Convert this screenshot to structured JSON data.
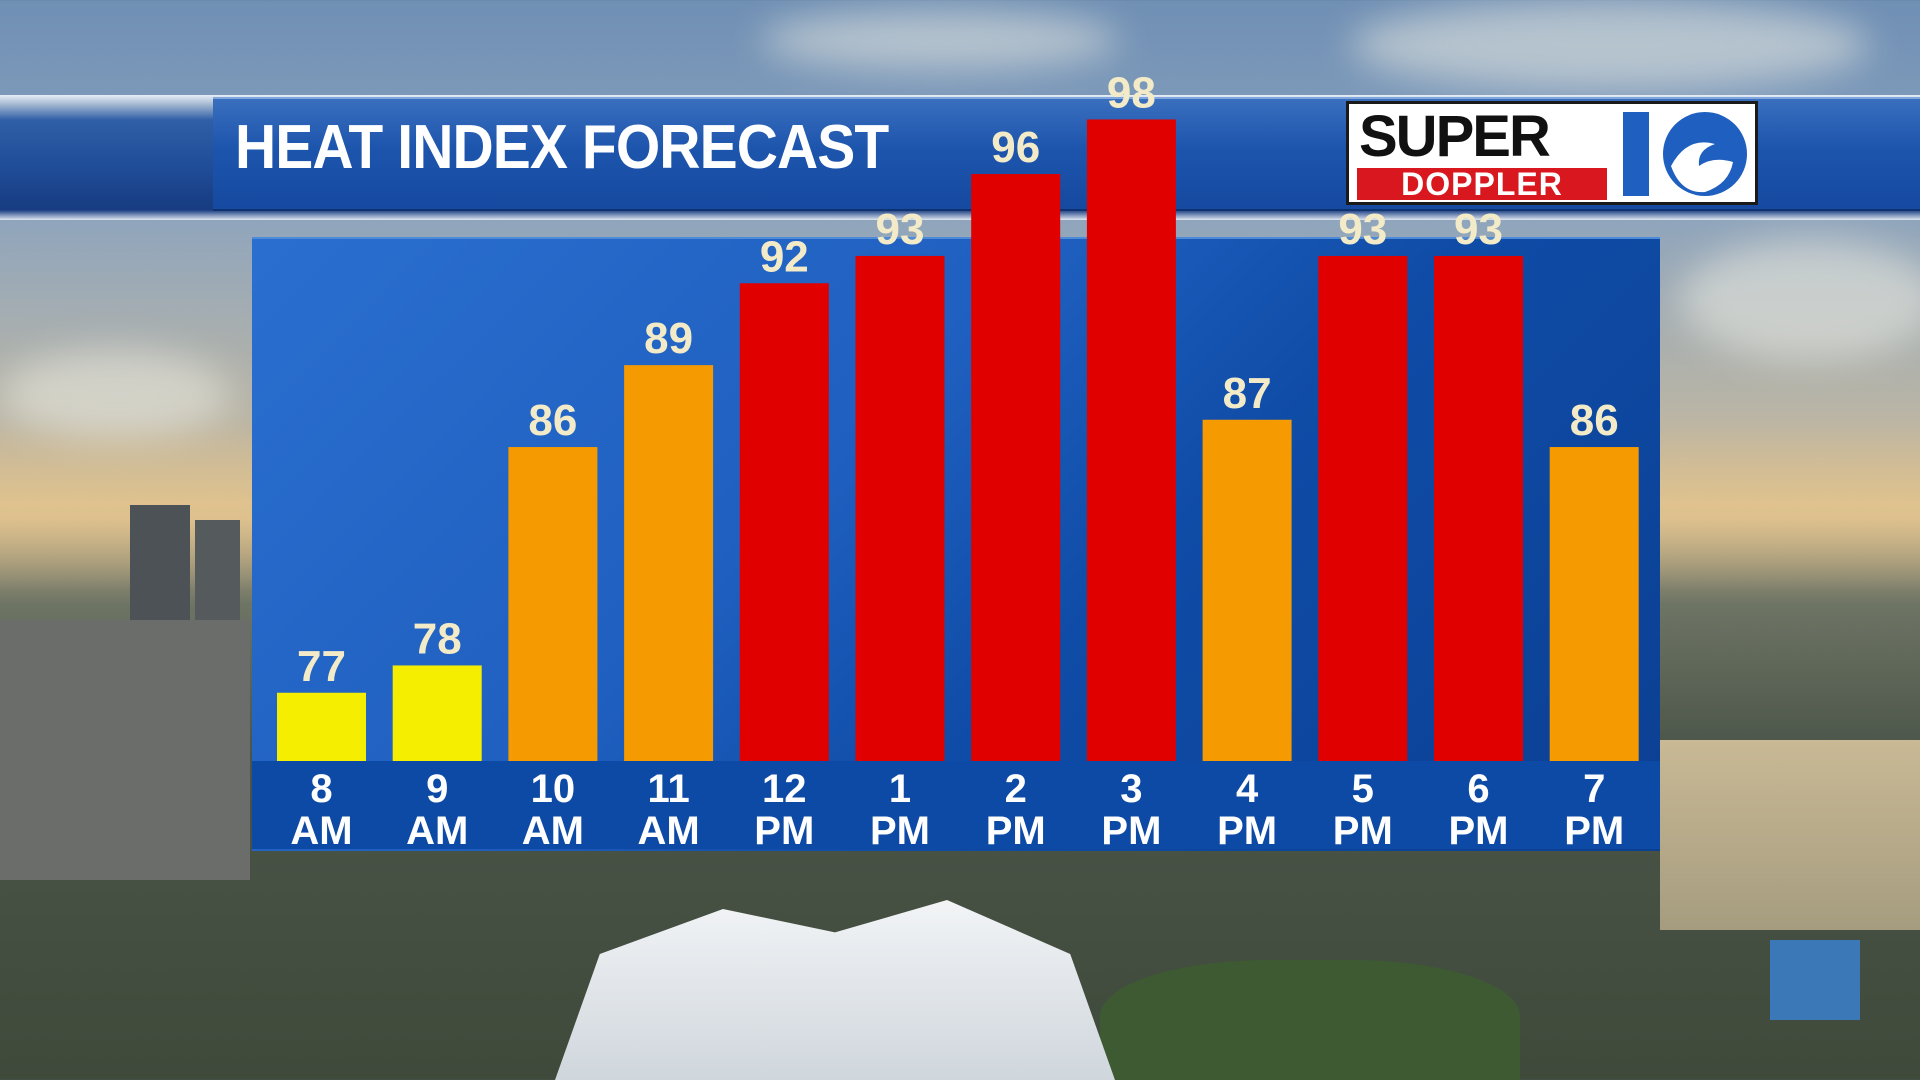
{
  "banner": {
    "title": "HEAT INDEX FORECAST"
  },
  "logo": {
    "line1": "SUPER",
    "line2": "DOPPLER",
    "number": "10"
  },
  "colors": {
    "low": "#f5ee00",
    "mid": "#f59a00",
    "high": "#e00000",
    "value_text": "#f3ebc8",
    "tick_text": "#ffffff"
  },
  "chart_data": {
    "type": "bar",
    "categories": [
      "8 AM",
      "9 AM",
      "10 AM",
      "11 AM",
      "12 PM",
      "1 PM",
      "2 PM",
      "3 PM",
      "4 PM",
      "5 PM",
      "6 PM",
      "7 PM"
    ],
    "tick_lines": [
      [
        "8",
        "AM"
      ],
      [
        "9",
        "AM"
      ],
      [
        "10",
        "AM"
      ],
      [
        "11",
        "AM"
      ],
      [
        "12",
        "PM"
      ],
      [
        "1",
        "PM"
      ],
      [
        "2",
        "PM"
      ],
      [
        "3",
        "PM"
      ],
      [
        "4",
        "PM"
      ],
      [
        "5",
        "PM"
      ],
      [
        "6",
        "PM"
      ],
      [
        "7",
        "PM"
      ]
    ],
    "values": [
      77,
      78,
      86,
      89,
      92,
      93,
      96,
      98,
      87,
      93,
      93,
      86
    ],
    "color_category": [
      "low",
      "low",
      "mid",
      "mid",
      "high",
      "high",
      "high",
      "high",
      "mid",
      "high",
      "high",
      "mid"
    ],
    "title": "HEAT INDEX FORECAST",
    "xlabel": "",
    "ylabel": "",
    "grid": false,
    "data_labels": true
  }
}
